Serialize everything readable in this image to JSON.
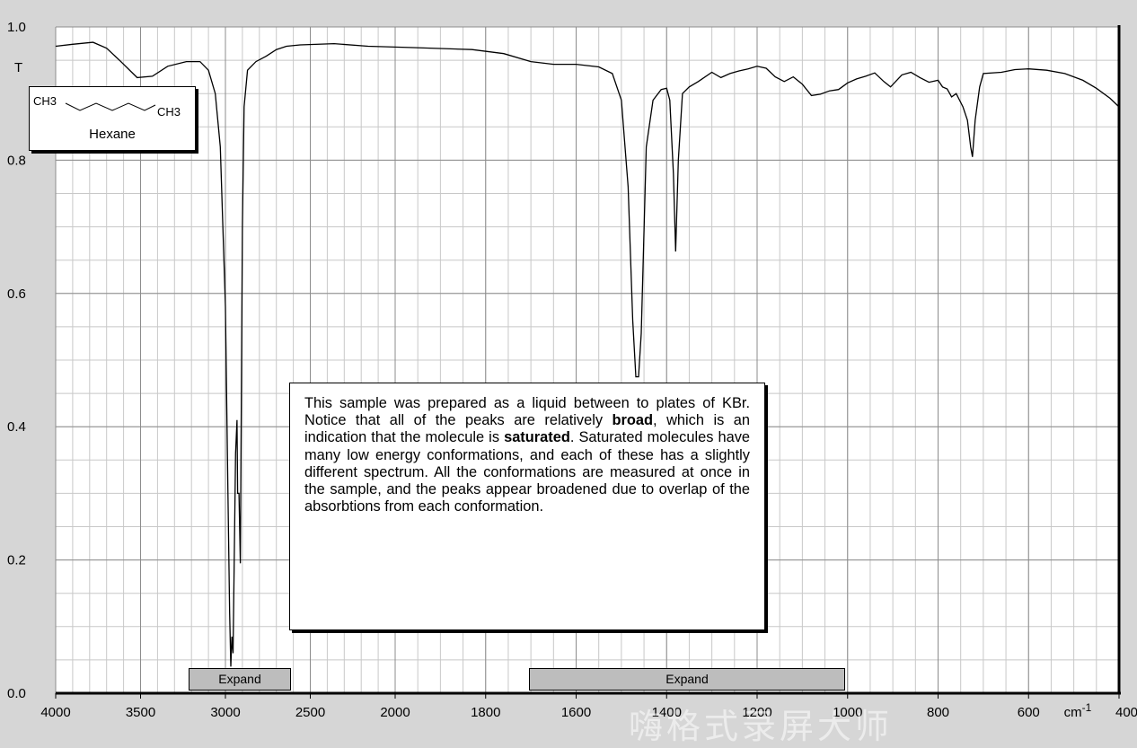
{
  "chart_data": {
    "type": "line",
    "title": "",
    "xlabel": "cm-1",
    "ylabel": "T",
    "xlim": [
      4000,
      400
    ],
    "ylim": [
      0.0,
      1.0
    ],
    "grid": true,
    "x_axis_note": "wavenumber axis scale changes at 2000 cm-1 (500 per major div above, 200 per major div below)",
    "x_ticks": [
      4000,
      3500,
      3000,
      2500,
      2000,
      1800,
      1600,
      1400,
      1200,
      1000,
      800,
      600,
      400
    ],
    "x_tick_labels": [
      "4000",
      "3500",
      "3000",
      "2500",
      "2000",
      "1800",
      "1600",
      "1400",
      "1200",
      "1000",
      "800",
      "600",
      "400"
    ],
    "y_ticks": [
      0.0,
      0.2,
      0.4,
      0.6,
      0.8,
      1.0
    ],
    "y_tick_labels": [
      "0.0",
      "0.2",
      "0.4",
      "0.6",
      "0.8",
      "1.0"
    ],
    "series": [
      {
        "name": "",
        "color": "#000000",
        "points": [
          [
            4000,
            0.971
          ],
          [
            3900,
            0.974
          ],
          [
            3780,
            0.977
          ],
          [
            3700,
            0.968
          ],
          [
            3620,
            0.949
          ],
          [
            3520,
            0.924
          ],
          [
            3430,
            0.926
          ],
          [
            3340,
            0.941
          ],
          [
            3230,
            0.948
          ],
          [
            3150,
            0.948
          ],
          [
            3100,
            0.935
          ],
          [
            3060,
            0.9
          ],
          [
            3030,
            0.82
          ],
          [
            3000,
            0.58
          ],
          [
            2985,
            0.3
          ],
          [
            2975,
            0.12
          ],
          [
            2968,
            0.04
          ],
          [
            2962,
            0.085
          ],
          [
            2955,
            0.06
          ],
          [
            2940,
            0.36
          ],
          [
            2932,
            0.41
          ],
          [
            2928,
            0.3
          ],
          [
            2920,
            0.3
          ],
          [
            2912,
            0.195
          ],
          [
            2900,
            0.7
          ],
          [
            2890,
            0.88
          ],
          [
            2870,
            0.935
          ],
          [
            2820,
            0.948
          ],
          [
            2760,
            0.956
          ],
          [
            2700,
            0.966
          ],
          [
            2640,
            0.971
          ],
          [
            2560,
            0.973
          ],
          [
            2360,
            0.975
          ],
          [
            2160,
            0.971
          ],
          [
            1960,
            0.969
          ],
          [
            1830,
            0.966
          ],
          [
            1760,
            0.96
          ],
          [
            1700,
            0.948
          ],
          [
            1650,
            0.944
          ],
          [
            1600,
            0.944
          ],
          [
            1550,
            0.94
          ],
          [
            1520,
            0.93
          ],
          [
            1500,
            0.89
          ],
          [
            1485,
            0.76
          ],
          [
            1475,
            0.56
          ],
          [
            1468,
            0.475
          ],
          [
            1462,
            0.475
          ],
          [
            1456,
            0.54
          ],
          [
            1445,
            0.82
          ],
          [
            1430,
            0.89
          ],
          [
            1412,
            0.906
          ],
          [
            1400,
            0.908
          ],
          [
            1393,
            0.89
          ],
          [
            1385,
            0.78
          ],
          [
            1380,
            0.663
          ],
          [
            1374,
            0.8
          ],
          [
            1365,
            0.9
          ],
          [
            1350,
            0.91
          ],
          [
            1330,
            0.918
          ],
          [
            1300,
            0.932
          ],
          [
            1280,
            0.924
          ],
          [
            1260,
            0.93
          ],
          [
            1240,
            0.934
          ],
          [
            1220,
            0.937
          ],
          [
            1200,
            0.941
          ],
          [
            1180,
            0.938
          ],
          [
            1160,
            0.925
          ],
          [
            1140,
            0.918
          ],
          [
            1120,
            0.925
          ],
          [
            1100,
            0.914
          ],
          [
            1080,
            0.897
          ],
          [
            1060,
            0.899
          ],
          [
            1040,
            0.904
          ],
          [
            1020,
            0.906
          ],
          [
            1000,
            0.916
          ],
          [
            980,
            0.922
          ],
          [
            960,
            0.926
          ],
          [
            940,
            0.931
          ],
          [
            920,
            0.918
          ],
          [
            905,
            0.91
          ],
          [
            880,
            0.928
          ],
          [
            860,
            0.932
          ],
          [
            840,
            0.924
          ],
          [
            820,
            0.917
          ],
          [
            800,
            0.92
          ],
          [
            790,
            0.91
          ],
          [
            780,
            0.907
          ],
          [
            770,
            0.895
          ],
          [
            760,
            0.9
          ],
          [
            745,
            0.88
          ],
          [
            735,
            0.86
          ],
          [
            728,
            0.82
          ],
          [
            724,
            0.805
          ],
          [
            718,
            0.86
          ],
          [
            708,
            0.91
          ],
          [
            700,
            0.93
          ],
          [
            660,
            0.932
          ],
          [
            630,
            0.936
          ],
          [
            600,
            0.937
          ],
          [
            560,
            0.935
          ],
          [
            520,
            0.93
          ],
          [
            480,
            0.92
          ],
          [
            450,
            0.908
          ],
          [
            420,
            0.893
          ],
          [
            400,
            0.88
          ]
        ]
      }
    ],
    "annotations": [
      {
        "id": "structure",
        "formula_left": "CH3",
        "formula_right": "CH3",
        "name": "Hexane"
      }
    ]
  },
  "note": {
    "segments": [
      {
        "text": "This sample was prepared as a liquid between to plates of KBr. Notice that all of the peaks are relatively ",
        "bold": false
      },
      {
        "text": "broad",
        "bold": true
      },
      {
        "text": ", which is an indication that the molecule is ",
        "bold": false
      },
      {
        "text": "saturated",
        "bold": true
      },
      {
        "text": ". Saturated molecules have many low energy conformations, and each of these has a slightly different spectrum. All the conformations are measured at once in the sample, and the peaks appear broadened due to overlap of the absorbtions from each conformation.",
        "bold": false
      }
    ]
  },
  "molecule": {
    "left_label": "CH3",
    "right_label": "CH3",
    "name": "Hexane"
  },
  "buttons": {
    "expand_left": "Expand",
    "expand_right": "Expand"
  },
  "watermark": "嗨格式录屏大师"
}
